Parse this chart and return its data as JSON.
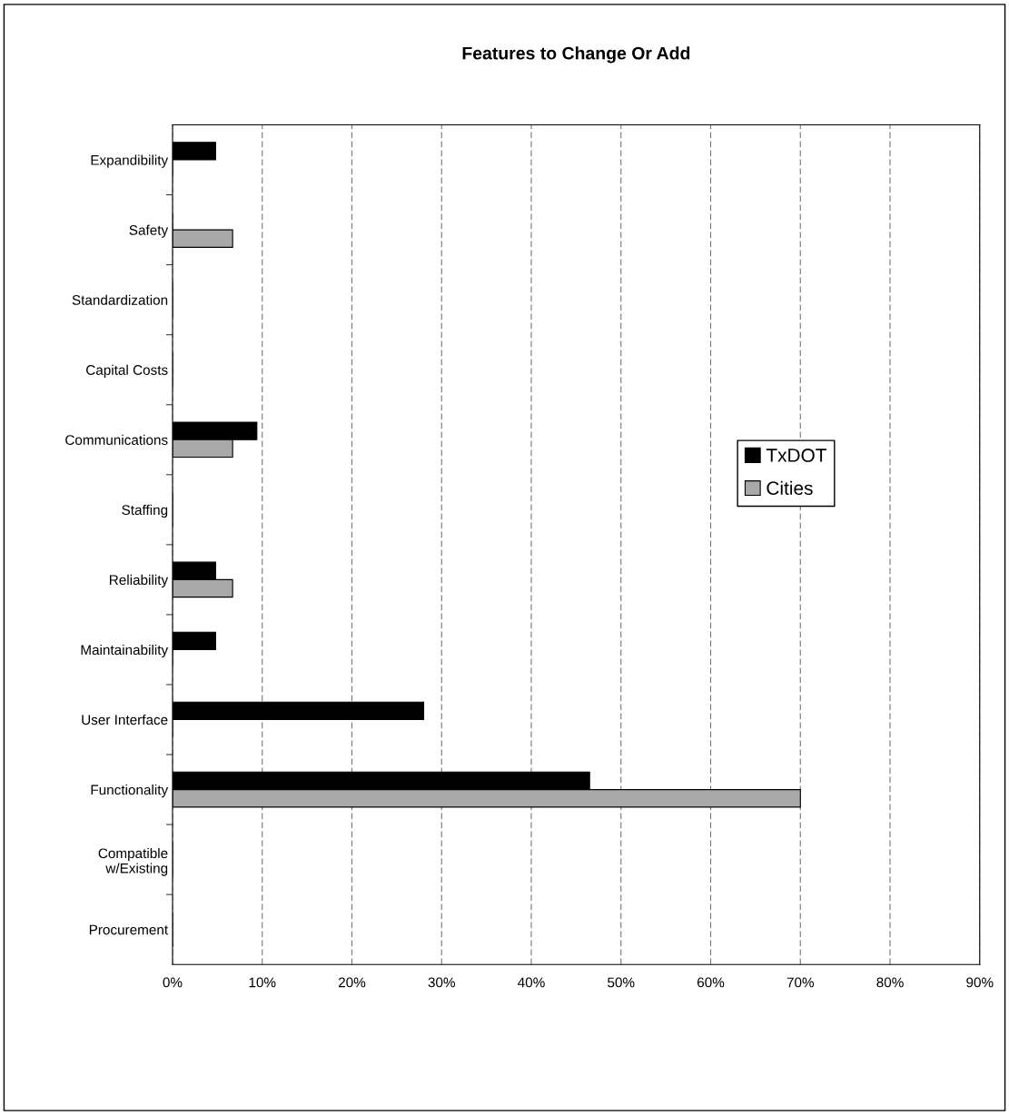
{
  "chart_data": {
    "type": "bar",
    "orientation": "horizontal",
    "title": "Features to Change Or Add",
    "categories": [
      "Expandibility",
      "Safety",
      "Standardization",
      "Capital Costs",
      "Communications",
      "Staffing",
      "Reliability",
      "Maintainability",
      "User Interface",
      "Functionality",
      "Compatible\nw/Existing",
      "Procurement"
    ],
    "series": [
      {
        "name": "TxDOT",
        "color": "#000000",
        "values": [
          4.8,
          0,
          0,
          0,
          9.4,
          0,
          4.8,
          4.8,
          28.0,
          46.5,
          0,
          0
        ]
      },
      {
        "name": "Cities",
        "color": "#a8a8a8",
        "values": [
          0,
          6.7,
          0,
          0,
          6.7,
          0,
          6.7,
          0,
          0,
          70.0,
          0,
          0
        ]
      }
    ],
    "xlim": [
      0,
      90
    ],
    "xticks": [
      {
        "value": 0,
        "label": "0%"
      },
      {
        "value": 10,
        "label": "10%"
      },
      {
        "value": 20,
        "label": "20%"
      },
      {
        "value": 30,
        "label": "30%"
      },
      {
        "value": 40,
        "label": "40%"
      },
      {
        "value": 50,
        "label": "50%"
      },
      {
        "value": 60,
        "label": "60%"
      },
      {
        "value": 70,
        "label": "70%"
      },
      {
        "value": 80,
        "label": "80%"
      },
      {
        "value": 90,
        "label": "90%"
      }
    ],
    "grid": "x",
    "legend": "right"
  }
}
